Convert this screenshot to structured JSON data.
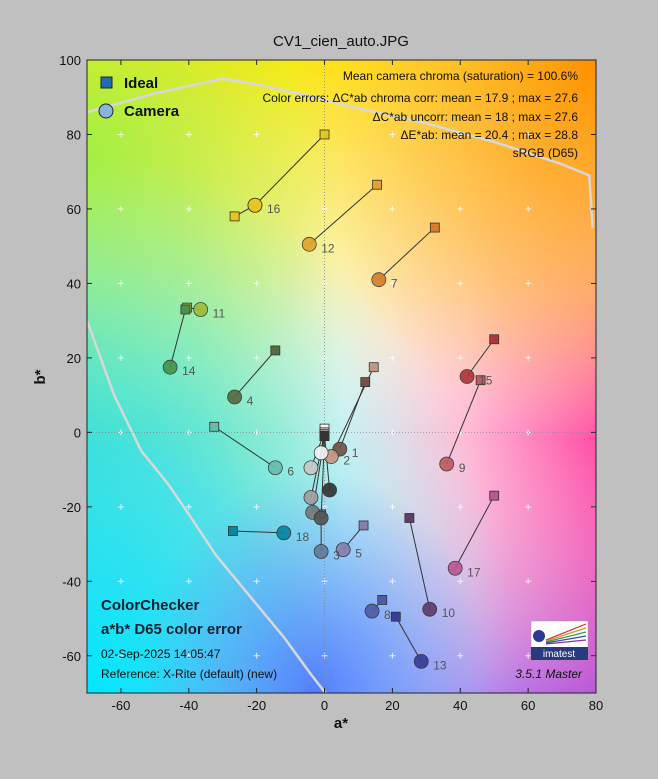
{
  "colors": {
    "background": "#c0c0c0",
    "ideal_marker": "#1f6fb0",
    "camera_marker": "#8ab4e0",
    "gamut_line": "#d8d8d8",
    "grid_plus": "#ffffff"
  },
  "chart_data": {
    "type": "scatter",
    "title": "CV1_cien_auto.JPG",
    "xlabel": "a*",
    "ylabel": "b*",
    "xlim": [
      -70,
      80
    ],
    "ylim": [
      -70,
      100
    ],
    "x_ticks": [
      -60,
      -40,
      -20,
      0,
      20,
      40,
      60,
      80
    ],
    "y_ticks": [
      -60,
      -40,
      -20,
      0,
      20,
      40,
      60,
      80,
      100
    ],
    "grid": "plus markers",
    "legend_position": "top-left",
    "legend": [
      {
        "marker": "square",
        "label": "Ideal"
      },
      {
        "marker": "circle",
        "label": "Camera"
      }
    ],
    "stats": [
      "Mean camera chroma (saturation) = 100.6%",
      "Color errors: ΔC*ab chroma corr:  mean = 17.9 ;  max = 27.6",
      "ΔC*ab uncorr:  mean = 18 ;  max = 27.6",
      "ΔE*ab:  mean = 20.4 ;  max = 28.8",
      "sRGB (D65)"
    ],
    "points": [
      {
        "label": "1",
        "ideal": [
          12,
          13.5
        ],
        "camera": [
          4.5,
          -4.5
        ],
        "color": "#735244"
      },
      {
        "label": "2",
        "ideal": [
          14.5,
          17.5
        ],
        "camera": [
          2,
          -6.5
        ],
        "color": "#c29682"
      },
      {
        "label": "3",
        "ideal": [
          -1,
          -22
        ],
        "camera": [
          -1,
          -32
        ],
        "color": "#627a9d"
      },
      {
        "label": "4",
        "ideal": [
          -14.5,
          22
        ],
        "camera": [
          -26.5,
          9.5
        ],
        "color": "#576c43"
      },
      {
        "label": "5",
        "ideal": [
          11.5,
          -25
        ],
        "camera": [
          5.5,
          -31.5
        ],
        "color": "#8580b1"
      },
      {
        "label": "6",
        "ideal": [
          -32.5,
          1.5
        ],
        "camera": [
          -14.5,
          -9.5
        ],
        "color": "#67bdaa"
      },
      {
        "label": "7",
        "ideal": [
          32.5,
          55
        ],
        "camera": [
          16,
          41
        ],
        "color": "#d67e2c"
      },
      {
        "label": "8",
        "ideal": [
          17,
          -45
        ],
        "camera": [
          14,
          -48
        ],
        "color": "#505ba6"
      },
      {
        "label": "9",
        "ideal": [
          46,
          14
        ],
        "camera": [
          36,
          -8.5
        ],
        "color": "#c15a63"
      },
      {
        "label": "10",
        "ideal": [
          25,
          -23
        ],
        "camera": [
          31,
          -47.5
        ],
        "color": "#5e3c6c"
      },
      {
        "label": "11",
        "ideal": [
          -40.5,
          33.5
        ],
        "camera": [
          -36.5,
          33
        ],
        "color": "#9dbc40"
      },
      {
        "label": "12",
        "ideal": [
          15.5,
          66.5
        ],
        "camera": [
          -4.5,
          50.5
        ],
        "color": "#e0a32e"
      },
      {
        "label": "13",
        "ideal": [
          21,
          -49.5
        ],
        "camera": [
          28.5,
          -61.5
        ],
        "color": "#383d96"
      },
      {
        "label": "14",
        "ideal": [
          -41,
          33
        ],
        "camera": [
          -45.5,
          17.5
        ],
        "color": "#469449"
      },
      {
        "label": "15",
        "ideal": [
          50,
          25
        ],
        "camera": [
          42,
          15
        ],
        "color": "#af363c"
      },
      {
        "label": "16",
        "ideal": [
          -26.5,
          58
        ],
        "camera": [
          -20.5,
          61
        ],
        "color": "#e7c71f"
      },
      {
        "label": "17",
        "ideal": [
          50,
          -17
        ],
        "camera": [
          38.5,
          -36.5
        ],
        "color": "#bb5695"
      },
      {
        "label": "18",
        "ideal": [
          -27,
          -26.5
        ],
        "camera": [
          -12,
          -27
        ],
        "color": "#0885a1"
      },
      {
        "label": "",
        "ideal": [
          0,
          80
        ],
        "camera": [
          -20.5,
          61
        ],
        "color": "#e7c71f"
      },
      {
        "label": "",
        "ideal": [
          0,
          1
        ],
        "camera": [
          -1,
          -5.5
        ],
        "color": "#f3f3f2"
      },
      {
        "label": "",
        "ideal": [
          0,
          0
        ],
        "camera": [
          -4,
          -9.5
        ],
        "color": "#c8c8c8"
      },
      {
        "label": "",
        "ideal": [
          0,
          -0.5
        ],
        "camera": [
          -4,
          -17.5
        ],
        "color": "#a0a0a0"
      },
      {
        "label": "",
        "ideal": [
          0,
          -1
        ],
        "camera": [
          -3.5,
          -21.5
        ],
        "color": "#7a7a79"
      },
      {
        "label": "",
        "ideal": [
          0,
          -1
        ],
        "camera": [
          -1,
          -23
        ],
        "color": "#555555"
      },
      {
        "label": "",
        "ideal": [
          0,
          -1
        ],
        "camera": [
          1.5,
          -15.5
        ],
        "color": "#343434"
      }
    ]
  },
  "info": {
    "title1": "ColorChecker",
    "title2": "a*b* D65 color error",
    "date": "02-Sep-2025 14:05:47",
    "reference": "Reference: X-Rite (default) (new)",
    "version": "3.5.1  Master",
    "logo": "imatest"
  }
}
